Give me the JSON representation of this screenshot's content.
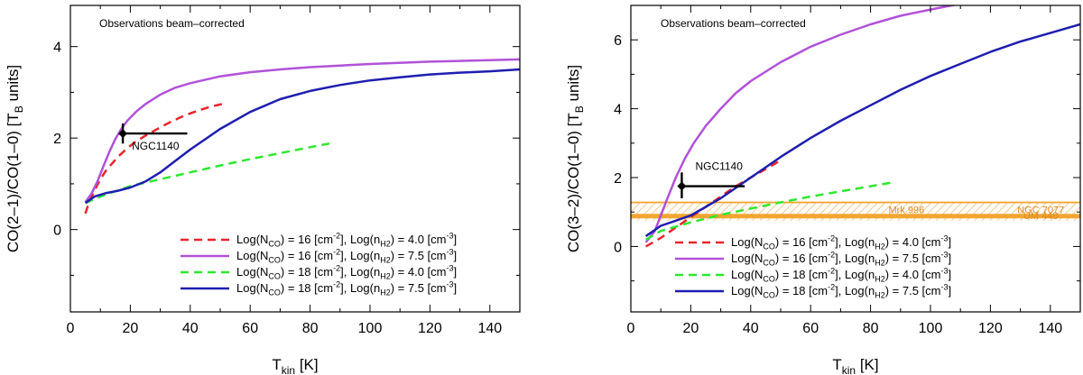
{
  "chart_data": [
    {
      "type": "line",
      "panel": "left",
      "title": "",
      "annotation": "Observations beam–corrected",
      "xlabel": "T_kin [K]",
      "ylabel": "CO(2–1)/CO(1–0) [T_B units]",
      "xlim": [
        0,
        150
      ],
      "ylim": [
        -1.8,
        4.9
      ],
      "xticks": [
        0,
        20,
        40,
        60,
        80,
        100,
        120,
        140
      ],
      "yticks": [
        0,
        2,
        4
      ],
      "series": [
        {
          "name": "Log(N_CO) = 16 [cm^-2], Log(n_H2) = 4.0 [cm^-3]",
          "color": "#e8262b",
          "dash": true,
          "x": [
            5,
            6,
            8,
            10,
            12,
            14,
            16,
            18,
            20,
            22,
            25,
            28,
            31,
            34,
            37,
            40,
            43,
            46,
            49,
            51
          ],
          "y": [
            0.35,
            0.55,
            0.85,
            1.1,
            1.3,
            1.45,
            1.6,
            1.72,
            1.83,
            1.93,
            2.05,
            2.16,
            2.27,
            2.37,
            2.46,
            2.54,
            2.61,
            2.67,
            2.72,
            2.75
          ]
        },
        {
          "name": "Log(N_CO) = 16 [cm^-2], Log(n_H2) = 7.5 [cm^-3]",
          "color": "#b152d8",
          "dash": false,
          "x": [
            5,
            7,
            9,
            11,
            13,
            15,
            17,
            19,
            22,
            25,
            30,
            35,
            40,
            50,
            60,
            70,
            80,
            100,
            120,
            150
          ],
          "y": [
            0.6,
            0.78,
            1.05,
            1.38,
            1.7,
            1.98,
            2.2,
            2.38,
            2.58,
            2.74,
            2.95,
            3.1,
            3.2,
            3.35,
            3.44,
            3.5,
            3.55,
            3.62,
            3.67,
            3.72
          ]
        },
        {
          "name": "Log(N_CO) = 18 [cm^-2], Log(n_H2) = 4.0 [cm^-3]",
          "color": "#2ee82e",
          "dash": true,
          "x": [
            5,
            10,
            20,
            30,
            40,
            50,
            60,
            70,
            80,
            88
          ],
          "y": [
            0.58,
            0.72,
            0.95,
            1.1,
            1.25,
            1.4,
            1.54,
            1.67,
            1.8,
            1.9
          ]
        },
        {
          "name": "Log(N_CO) = 18 [cm^-2], Log(n_H2) = 7.5 [cm^-3]",
          "color": "#1e1eb0",
          "dash": false,
          "x": [
            5,
            8,
            12,
            16,
            20,
            25,
            30,
            35,
            40,
            50,
            60,
            70,
            80,
            90,
            100,
            110,
            120,
            130,
            140,
            150
          ],
          "y": [
            0.58,
            0.72,
            0.8,
            0.85,
            0.92,
            1.05,
            1.25,
            1.5,
            1.75,
            2.2,
            2.57,
            2.85,
            3.03,
            3.16,
            3.26,
            3.33,
            3.39,
            3.43,
            3.46,
            3.5
          ]
        }
      ],
      "points": [
        {
          "label": "NGC1140",
          "x": 17.5,
          "y": 2.1,
          "x_err": [
            17.5,
            39
          ],
          "y_err": [
            1.88,
            2.32
          ]
        }
      ],
      "bands": [],
      "legend_position": "bottom-right"
    },
    {
      "type": "line",
      "panel": "right",
      "title": "",
      "annotation": "Observations beam–corrected",
      "xlabel": "T_kin [K]",
      "ylabel": "CO(3–2)/CO(1–0) [T_B units]",
      "xlim": [
        0,
        150
      ],
      "ylim": [
        -1.9,
        7.0
      ],
      "xticks": [
        0,
        20,
        40,
        60,
        80,
        100,
        120,
        140
      ],
      "yticks": [
        0,
        2,
        4,
        6
      ],
      "series": [
        {
          "name": "Log(N_CO) = 16 [cm^-2], Log(n_H2) = 4.0 [cm^-3]",
          "color": "#e8262b",
          "dash": true,
          "x": [
            5,
            10,
            15,
            20,
            25,
            30,
            35,
            40,
            45,
            50
          ],
          "y": [
            0.0,
            0.25,
            0.55,
            0.85,
            1.15,
            1.45,
            1.75,
            2.0,
            2.25,
            2.5
          ]
        },
        {
          "name": "Log(N_CO) = 16 [cm^-2], Log(n_H2) = 7.5 [cm^-3]",
          "color": "#b152d8",
          "dash": false,
          "x": [
            5,
            8,
            10,
            12,
            15,
            18,
            21,
            25,
            30,
            35,
            40,
            50,
            60,
            70,
            80,
            90,
            100,
            110
          ],
          "y": [
            0.12,
            0.45,
            0.9,
            1.35,
            2.0,
            2.55,
            3.0,
            3.5,
            4.0,
            4.45,
            4.8,
            5.35,
            5.8,
            6.15,
            6.45,
            6.7,
            6.88,
            7.05
          ]
        },
        {
          "name": "Log(N_CO) = 18 [cm^-2], Log(n_H2) = 4.0 [cm^-3]",
          "color": "#2ee82e",
          "dash": true,
          "x": [
            5,
            10,
            20,
            30,
            40,
            50,
            60,
            70,
            80,
            88
          ],
          "y": [
            0.2,
            0.45,
            0.7,
            0.92,
            1.1,
            1.28,
            1.45,
            1.6,
            1.75,
            1.87
          ]
        },
        {
          "name": "Log(N_CO) = 18 [cm^-2], Log(n_H2) = 7.5 [cm^-3]",
          "color": "#1e1eb0",
          "dash": false,
          "x": [
            5,
            10,
            15,
            20,
            25,
            30,
            35,
            40,
            45,
            50,
            60,
            70,
            80,
            90,
            100,
            110,
            120,
            130,
            140,
            150
          ],
          "y": [
            0.3,
            0.6,
            0.75,
            0.9,
            1.15,
            1.4,
            1.7,
            2.0,
            2.3,
            2.6,
            3.15,
            3.65,
            4.1,
            4.55,
            4.95,
            5.3,
            5.65,
            5.95,
            6.2,
            6.45
          ]
        }
      ],
      "points": [
        {
          "label": "NGC1140",
          "x": 17,
          "y": 1.75,
          "x_err": [
            17,
            38
          ],
          "y_err": [
            1.4,
            2.15
          ]
        }
      ],
      "bands": [
        {
          "label": "Mrk 996",
          "y": 1.28,
          "low": 0.75,
          "high": 1.28,
          "color": "#f2a530"
        },
        {
          "label": "NGC 7077",
          "y": 1.28,
          "color": "#f2a530"
        },
        {
          "label": "UM 448",
          "y": 0.88,
          "color": "#f2a530"
        }
      ],
      "legend_position": "bottom-right"
    }
  ]
}
